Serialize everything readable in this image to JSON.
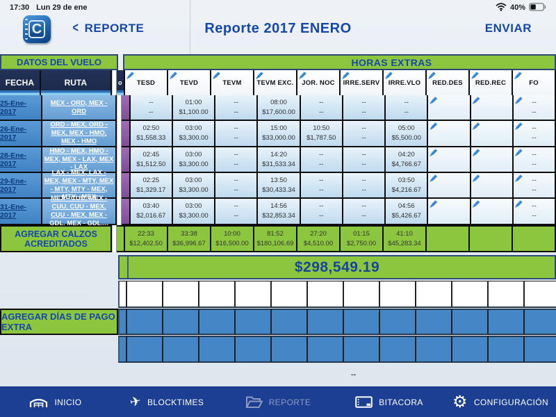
{
  "status_bar": {
    "time": "17:30",
    "date": "Lun 29 de ene",
    "battery_percent": "40%"
  },
  "header": {
    "back_label": "REPORTE",
    "title": "Reporte 2017 ENERO",
    "send_label": "ENVIAR",
    "app_icon_letter": "C"
  },
  "flight_table": {
    "left_banner": "DATOS DEL VUELO",
    "right_banner": "HORAS EXTRAS",
    "fecha_header": "FECHA",
    "ruta_header": "RUTA",
    "mini_header": "o",
    "columns": [
      "TESD",
      "TEVD",
      "TEVM",
      "TEVM EXC.",
      "JOR. NOC",
      "IRRE.SERV",
      "IRRE.VLO",
      "RED.DES",
      "RED.REC",
      "FO"
    ],
    "rows": [
      {
        "fecha": "25-Ene-2017",
        "ruta": "MEX - ORD, MEX - ORD",
        "cells": [
          {
            "time": "--",
            "money": "--"
          },
          {
            "time": "01:00",
            "money": "$1,100.00"
          },
          {
            "time": "--",
            "money": "--"
          },
          {
            "time": "08:00",
            "money": "$17,600.00"
          },
          {
            "time": "--",
            "money": "--"
          },
          {
            "time": "--",
            "money": "--"
          },
          {
            "time": "--",
            "money": "--"
          },
          {
            "pencil": true
          },
          {
            "pencil": true
          },
          {
            "pencil": true,
            "time": "--",
            "money": "--"
          }
        ]
      },
      {
        "fecha": "26-Ene-2017",
        "ruta": "ORD - MEX, ORD - MEX, MEX - HMO, MEX - HMO",
        "cells": [
          {
            "time": "02:50",
            "money": "$1,558.33"
          },
          {
            "time": "03:00",
            "money": "$3,300.00"
          },
          {
            "time": "--",
            "money": "--"
          },
          {
            "time": "15:00",
            "money": "$33,000.00"
          },
          {
            "time": "10:50",
            "money": "$1,787.50"
          },
          {
            "time": "--",
            "money": "--"
          },
          {
            "time": "05:00",
            "money": "$5,500.00"
          },
          {
            "pencil": true
          },
          {
            "pencil": true
          },
          {
            "pencil": true,
            "time": "--",
            "money": "--"
          }
        ]
      },
      {
        "fecha": "28-Ene-2017",
        "ruta": "HMO - MEX, HMO - MEX, MEX - LAX, MEX - LAX",
        "cells": [
          {
            "time": "02:45",
            "money": "$1,512.50"
          },
          {
            "time": "03:00",
            "money": "$3,300.00"
          },
          {
            "time": "--",
            "money": "--"
          },
          {
            "time": "14:20",
            "money": "$31,533.34"
          },
          {
            "time": "--",
            "money": "--"
          },
          {
            "time": "--",
            "money": "--"
          },
          {
            "time": "04:20",
            "money": "$4,766.67"
          },
          {
            "pencil": true
          },
          {
            "pencil": true
          },
          {
            "pencil": true,
            "time": "--",
            "money": "--"
          }
        ]
      },
      {
        "fecha": "29-Ene-2017",
        "ruta": "LAX - MEX, LAX - MEX, MEX - MTY, MEX - MTY, MTY - MEX, MTY - MEX",
        "cells": [
          {
            "time": "02:25",
            "money": "$1,329.17"
          },
          {
            "time": "03:00",
            "money": "$3,300.00"
          },
          {
            "time": "--",
            "money": "--"
          },
          {
            "time": "13:50",
            "money": "$30,433.34"
          },
          {
            "time": "--",
            "money": "--"
          },
          {
            "time": "--",
            "money": "--"
          },
          {
            "time": "03:50",
            "money": "$4,216.67"
          },
          {
            "pencil": true
          },
          {
            "pencil": true
          },
          {
            "pencil": true,
            "time": "--",
            "money": "--"
          }
        ]
      },
      {
        "fecha": "31-Ene-2017",
        "ruta": "MEX - CUU, MEX - CUU, CUU - MEX, CUU - MEX, MEX - GDL, MEX - GDL,...",
        "cells": [
          {
            "time": "03:40",
            "money": "$2,016.67"
          },
          {
            "time": "03:00",
            "money": "$3,300.00"
          },
          {
            "time": "--",
            "money": "--"
          },
          {
            "time": "14:56",
            "money": "$32,853.34"
          },
          {
            "time": "--",
            "money": "--"
          },
          {
            "time": "--",
            "money": "--"
          },
          {
            "time": "04:56",
            "money": "$5,426.67"
          },
          {
            "pencil": true
          },
          {
            "pencil": true
          },
          {
            "pencil": true,
            "time": "--",
            "money": "--"
          }
        ]
      }
    ],
    "totals_label": "AGREGAR  CALZOS ACREDITADOS",
    "totals": [
      {
        "time": "22:33",
        "money": "$12,402.50"
      },
      {
        "time": "33:38",
        "money": "$36,996.67"
      },
      {
        "time": "10:00",
        "money": "$16,500.00"
      },
      {
        "time": "81:52",
        "money": "$180,106.69"
      },
      {
        "time": "27:20",
        "money": "$4,510.00"
      },
      {
        "time": "01:15",
        "money": "$2,750.00"
      },
      {
        "time": "41:10",
        "money": "$45,283.34"
      },
      {},
      {},
      {}
    ],
    "grand_total": "$298,549.19",
    "pago_extra_label": "AGREGAR DÍAS DE PAGO EXTRA",
    "footer_placeholder": "--"
  },
  "nav": {
    "items": [
      {
        "label": "INICIO",
        "icon": "hangar-icon",
        "active": false
      },
      {
        "label": "BLOCKTIMES",
        "icon": "airplane-icon",
        "active": false
      },
      {
        "label": "REPORTE",
        "icon": "folder-icon",
        "active": true
      },
      {
        "label": "BITACORA",
        "icon": "logbook-icon",
        "active": false
      },
      {
        "label": "CONFIGURACIÓN",
        "icon": "gear-icon",
        "active": false
      }
    ]
  },
  "colors": {
    "green": "#8cc63e",
    "navy_text": "#1648ab",
    "header_navy": "#1b2949",
    "purple": "#8e5da6",
    "row_blue": "#4486c6",
    "nav_blue": "#1c3f94"
  }
}
